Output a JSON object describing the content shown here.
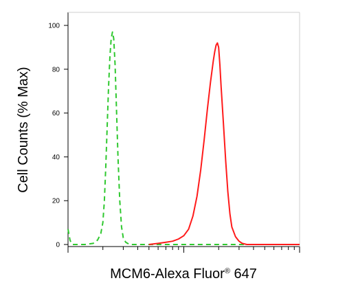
{
  "chart_data": {
    "type": "line",
    "xlabel": "MCM6-Alexa Fluor",
    "xlabel_mark": "®",
    "xlabel_suffix": " 647",
    "ylabel": "Cell Counts (% Max)",
    "yticks": [
      "0",
      "20",
      "40",
      "60",
      "80",
      "100"
    ],
    "ylim": [
      0,
      105
    ],
    "xscale": "log",
    "xlim": [
      100000,
      10000000
    ],
    "grid": false,
    "series": [
      {
        "style": "dashed",
        "color": "#2ec82e",
        "x": [
          100000,
          104000,
          107000,
          110000,
          115000,
          120000,
          140000,
          165000,
          180000,
          192000,
          200000,
          206000,
          212000,
          218000,
          224000,
          230000,
          236000,
          242000,
          248000,
          255000,
          262000,
          270000,
          280000,
          290000,
          300000,
          315000,
          340000,
          400000,
          1000000,
          3000000,
          10000000
        ],
        "y": [
          7,
          2,
          0.5,
          0,
          0,
          0,
          0,
          0.5,
          2,
          5,
          10,
          20,
          36,
          54,
          72,
          86,
          94,
          97,
          94,
          82,
          62,
          40,
          20,
          8,
          3,
          1,
          0,
          0,
          0,
          0,
          0
        ]
      },
      {
        "style": "solid",
        "color": "#ff1a1a",
        "x": [
          500000,
          600000,
          700000,
          800000,
          900000,
          1000000,
          1100000,
          1200000,
          1300000,
          1400000,
          1500000,
          1600000,
          1700000,
          1800000,
          1850000,
          1900000,
          1950000,
          2000000,
          2050000,
          2100000,
          2200000,
          2300000,
          2400000,
          2500000,
          2600000,
          2800000,
          3000000,
          3200000,
          3500000,
          4000000,
          5000000,
          10000000
        ],
        "y": [
          0,
          0.5,
          1,
          1.5,
          2.5,
          4,
          7,
          13,
          22,
          34,
          48,
          62,
          74,
          84,
          88,
          91,
          92,
          90,
          82,
          72,
          55,
          38,
          24,
          14,
          8,
          3.5,
          1.5,
          0.5,
          0,
          0,
          0,
          0
        ]
      }
    ]
  }
}
